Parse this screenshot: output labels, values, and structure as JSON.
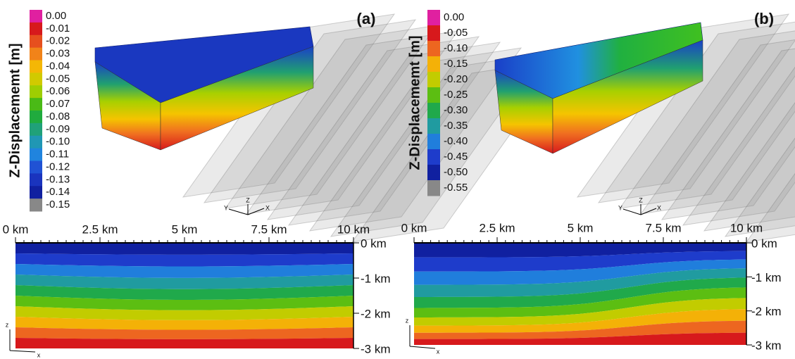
{
  "panels": [
    {
      "label": "(a)",
      "colorbar": {
        "title": "Z-Displacememt [m]",
        "labels": [
          "0.00",
          "-0.01",
          "-0.02",
          "-0.03",
          "-0.04",
          "-0.05",
          "-0.06",
          "-0.07",
          "-0.08",
          "-0.09",
          "-0.10",
          "-0.11",
          "-0.12",
          "-0.13",
          "-0.14",
          "-0.15"
        ]
      },
      "top_axis": [
        "0 km",
        "2.5 km",
        "5 km",
        "7.5 km",
        "10 km"
      ],
      "depth_axis": [
        "0 km",
        "-1 km",
        "-2 km",
        "-3 km"
      ],
      "triad": [
        "Y",
        "Z",
        "X"
      ],
      "section_triad": [
        "z",
        "x"
      ]
    },
    {
      "label": "(b)",
      "colorbar": {
        "title": "Z-Displacememt [m]",
        "labels": [
          "0.00",
          "-0.05",
          "-0.10",
          "-0.15",
          "-0.20",
          "-0.25",
          "-0.30",
          "-0.35",
          "-0.40",
          "-0.45",
          "-0.50",
          "-0.55"
        ]
      },
      "top_axis": [
        "0 km",
        "2.5 km",
        "5 km",
        "7.5 km",
        "10 km"
      ],
      "depth_axis": [
        "0 km",
        "-1 km",
        "-2 km",
        "-3 km"
      ],
      "triad": [
        "Y",
        "Z",
        "X"
      ],
      "section_triad": [
        "z",
        "x"
      ]
    }
  ]
}
